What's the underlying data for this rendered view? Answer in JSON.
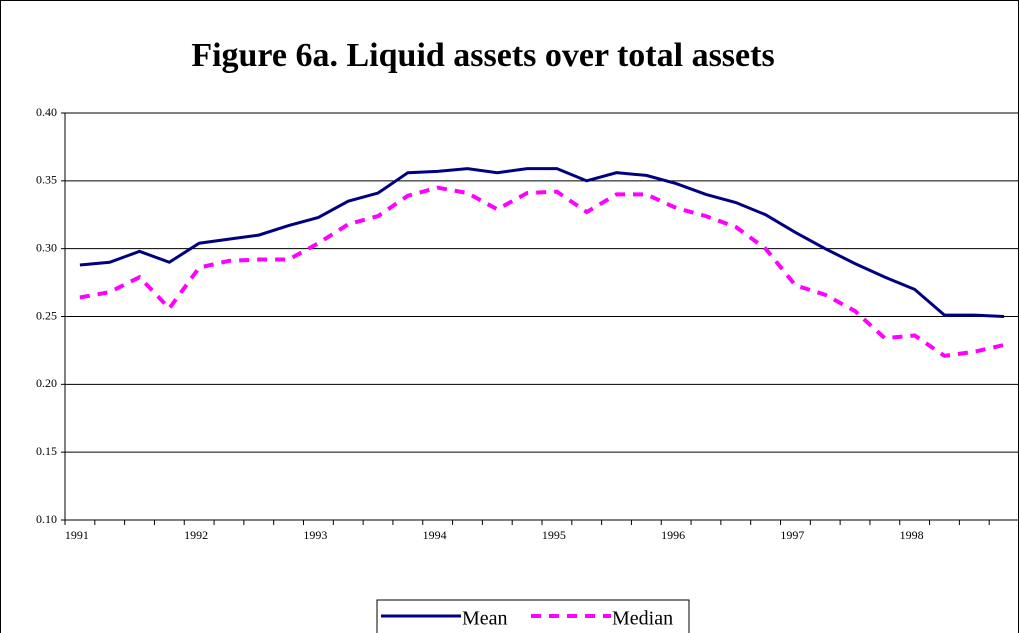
{
  "chart_data": {
    "type": "line",
    "title": "Figure 6a. Liquid assets over total assets",
    "categories": [
      "1991",
      null,
      null,
      null,
      "1992",
      null,
      null,
      null,
      "1993",
      null,
      null,
      null,
      "1994",
      null,
      null,
      null,
      "1995",
      null,
      null,
      null,
      "1996",
      null,
      null,
      null,
      "1997",
      null,
      null,
      null,
      "1998",
      null,
      null,
      null
    ],
    "series": [
      {
        "name": "Mean",
        "color": "#000080",
        "dash": false,
        "values": [
          0.288,
          0.29,
          0.298,
          0.29,
          0.304,
          0.307,
          0.31,
          0.317,
          0.323,
          0.335,
          0.341,
          0.356,
          0.357,
          0.359,
          0.356,
          0.359,
          0.359,
          0.35,
          0.356,
          0.354,
          0.348,
          0.34,
          0.334,
          0.325,
          0.312,
          0.3,
          0.289,
          0.279,
          0.27,
          0.251,
          0.251,
          0.25
        ]
      },
      {
        "name": "Median",
        "color": "#ff00ff",
        "dash": true,
        "values": [
          0.264,
          0.268,
          0.279,
          0.256,
          0.286,
          0.291,
          0.292,
          0.292,
          0.304,
          0.318,
          0.324,
          0.339,
          0.345,
          0.341,
          0.329,
          0.341,
          0.342,
          0.327,
          0.34,
          0.34,
          0.33,
          0.324,
          0.316,
          0.3,
          0.273,
          0.266,
          0.254,
          0.234,
          0.236,
          0.221,
          0.224,
          0.229
        ]
      }
    ],
    "ylim": [
      0.1,
      0.4
    ],
    "yticks": [
      {
        "value": 0.1,
        "label": "0.10"
      },
      {
        "value": 0.15,
        "label": "0.15"
      },
      {
        "value": 0.2,
        "label": "0.20"
      },
      {
        "value": 0.25,
        "label": "0.25"
      },
      {
        "value": 0.3,
        "label": "0.30"
      },
      {
        "value": 0.35,
        "label": "0.35"
      },
      {
        "value": 0.4,
        "label": "0.40"
      }
    ],
    "grid": true,
    "legend": "bottom"
  }
}
